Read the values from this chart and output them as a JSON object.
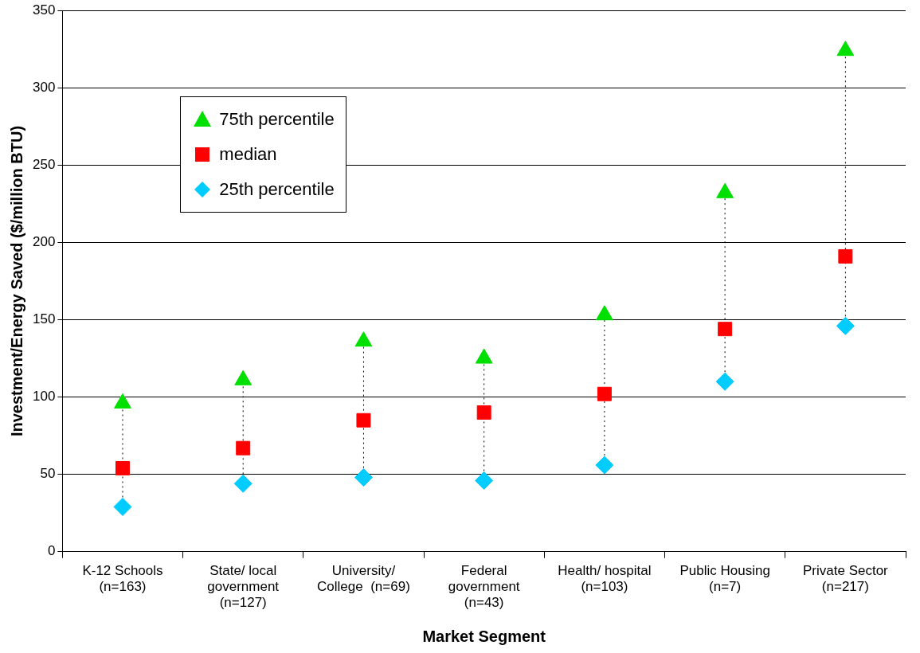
{
  "chart_data": {
    "type": "scatter",
    "xlabel": "Market Segment",
    "ylabel": "Investment/Energy Saved ($/million BTU)",
    "categories": [
      "K-12 Schools\n(n=163)",
      "State/ local\ngovernment\n(n=127)",
      "University/\nCollege  (n=69)",
      "Federal\ngovernment\n(n=43)",
      "Health/ hospital\n(n=103)",
      "Public Housing\n(n=7)",
      "Private Sector\n(n=217)"
    ],
    "series": [
      {
        "name": "75th percentile",
        "color": "#00e000",
        "marker": "triangle",
        "values": [
          96,
          111,
          136,
          125,
          153,
          232,
          324
        ]
      },
      {
        "name": "median",
        "color": "#ff0000",
        "marker": "square",
        "values": [
          54,
          67,
          85,
          90,
          102,
          144,
          191
        ]
      },
      {
        "name": "25th percentile",
        "color": "#00ccff",
        "marker": "diamond",
        "values": [
          29,
          44,
          48,
          46,
          56,
          110,
          146
        ]
      }
    ],
    "ylim": [
      0,
      350
    ],
    "yticks": [
      0,
      50,
      100,
      150,
      200,
      250,
      300,
      350
    ],
    "grid": "y",
    "legend": "top left"
  }
}
